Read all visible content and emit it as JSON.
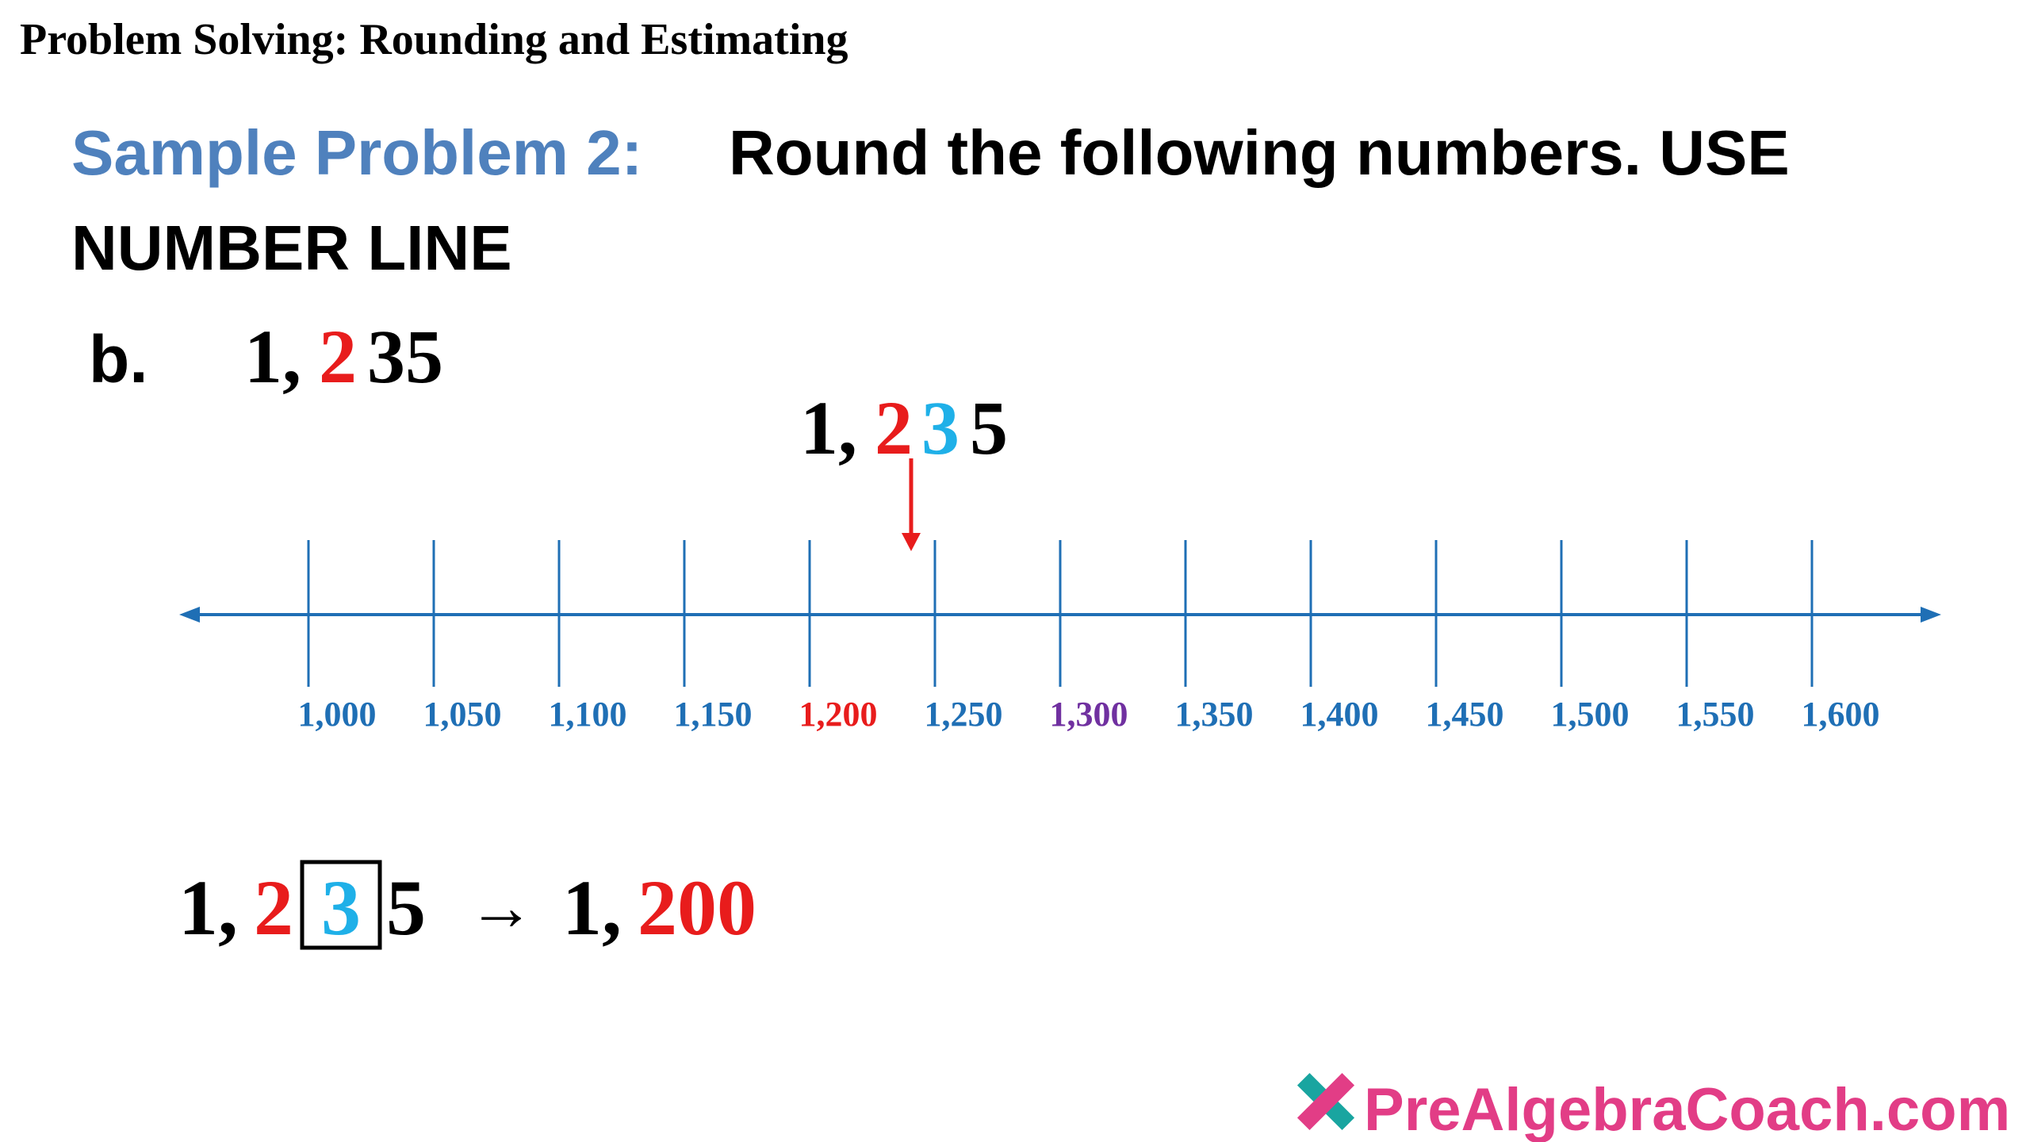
{
  "header": {
    "title": "Problem Solving: Rounding and Estimating"
  },
  "problem": {
    "label": "Sample Problem 2:",
    "lines": [
      "Round the following numbers. USE",
      "NUMBER LINE"
    ],
    "part": "b.",
    "number": [
      "1,",
      "2",
      "35"
    ]
  },
  "number_line": {
    "number": [
      "1,",
      "2",
      "3",
      "5"
    ],
    "ticks": [
      "1,000",
      "1,050",
      "1,100",
      "1,150",
      "1,200",
      "1,250",
      "1,300",
      "1,350",
      "1,400",
      "1,450",
      "1,500",
      "1,550",
      "1,600"
    ]
  },
  "result": {
    "number": [
      "1,",
      "2",
      "3",
      "5"
    ],
    "arrow": "→",
    "answer": [
      "1,",
      "200"
    ]
  },
  "footer": {
    "logo": "PreAlgebraCoach.com"
  }
}
